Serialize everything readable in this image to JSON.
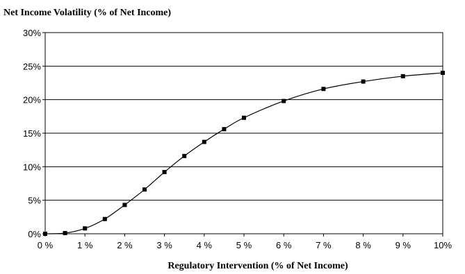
{
  "chart_data": {
    "type": "line",
    "title": "Net Income Volatility (% of Net Income)",
    "xlabel": "Regulatory Intervention (% of Net Income)",
    "ylabel": "",
    "xlim": [
      0,
      10
    ],
    "ylim": [
      0,
      30
    ],
    "x_ticks": [
      0,
      1,
      2,
      3,
      4,
      5,
      6,
      7,
      8,
      9,
      10
    ],
    "x_tick_labels": [
      "0 %",
      "1 %",
      "2 %",
      "3 %",
      "4 %",
      "5 %",
      "6 %",
      "7 %",
      "8 %",
      "9 %",
      "10%"
    ],
    "y_ticks": [
      0,
      5,
      10,
      15,
      20,
      25,
      30
    ],
    "y_tick_labels": [
      "0%",
      "5%",
      "10%",
      "15%",
      "20%",
      "25%",
      "30%"
    ],
    "grid": "horizontal",
    "series": [
      {
        "x": [
          0,
          0.5,
          1,
          1.5,
          2,
          2.5,
          3,
          3.5,
          4,
          4.5,
          5,
          6,
          7,
          8,
          9,
          10
        ],
        "values": [
          0,
          0.1,
          0.8,
          2.2,
          4.3,
          6.6,
          9.2,
          11.6,
          13.7,
          15.6,
          17.3,
          19.8,
          21.6,
          22.7,
          23.5,
          24.0
        ]
      }
    ]
  }
}
